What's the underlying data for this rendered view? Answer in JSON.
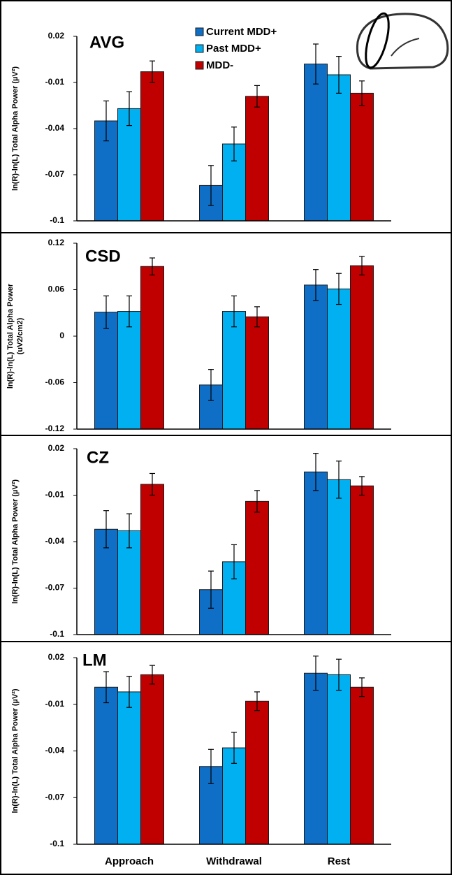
{
  "chart_data": [
    {
      "type": "bar",
      "title": "AVG",
      "ylabel": [
        "ln(R)-ln(L) Total Alpha Power (µV²)"
      ],
      "ylim": [
        -0.1,
        0.02
      ],
      "yticks": [
        0.02,
        -0.01,
        -0.04,
        -0.07,
        -0.1
      ],
      "legend": "top-center",
      "series": [
        {
          "name": "Current MDD+",
          "color": "#0f6fc6",
          "values": [
            -0.035,
            -0.077,
            0.002
          ],
          "errors": [
            0.013,
            0.013,
            0.013
          ]
        },
        {
          "name": "Past MDD+",
          "color": "#00b0f0",
          "values": [
            -0.027,
            -0.05,
            -0.005
          ],
          "errors": [
            0.011,
            0.011,
            0.012
          ]
        },
        {
          "name": "MDD-",
          "color": "#c00000",
          "values": [
            -0.003,
            -0.019,
            -0.017
          ],
          "errors": [
            0.007,
            0.007,
            0.008
          ]
        }
      ]
    },
    {
      "type": "bar",
      "title": "CSD",
      "ylabel": [
        "ln(R)-ln(L) Total Alpha Power",
        "(uV2/cm2)"
      ],
      "ylim": [
        -0.12,
        0.12
      ],
      "yticks": [
        0.12,
        0.06,
        0,
        -0.06,
        -0.12
      ],
      "series": [
        {
          "color": "#0f6fc6",
          "values": [
            0.031,
            -0.063,
            0.066
          ],
          "errors": [
            0.021,
            0.02,
            0.02
          ]
        },
        {
          "color": "#00b0f0",
          "values": [
            0.032,
            0.032,
            0.061
          ],
          "errors": [
            0.02,
            0.02,
            0.02
          ]
        },
        {
          "color": "#c00000",
          "values": [
            0.09,
            0.025,
            0.091
          ],
          "errors": [
            0.011,
            0.013,
            0.012
          ]
        }
      ]
    },
    {
      "type": "bar",
      "title": "CZ",
      "ylabel": [
        "ln(R)-ln(L) Total Alpha Power (µV²)"
      ],
      "ylim": [
        -0.1,
        0.02
      ],
      "yticks": [
        0.02,
        -0.01,
        -0.04,
        -0.07,
        -0.1
      ],
      "series": [
        {
          "color": "#0f6fc6",
          "values": [
            -0.032,
            -0.071,
            0.005
          ],
          "errors": [
            0.012,
            0.012,
            0.012
          ]
        },
        {
          "color": "#00b0f0",
          "values": [
            -0.033,
            -0.053,
            0
          ],
          "errors": [
            0.011,
            0.011,
            0.012
          ]
        },
        {
          "color": "#c00000",
          "values": [
            -0.003,
            -0.014,
            -0.004
          ],
          "errors": [
            0.007,
            0.007,
            0.006
          ]
        }
      ]
    },
    {
      "type": "bar",
      "title": "LM",
      "ylabel": [
        "ln(R)-ln(L) Total Alpha Power (µV²)"
      ],
      "categories": [
        "Approach",
        "Withdrawal",
        "Rest"
      ],
      "ylim": [
        -0.1,
        0.02
      ],
      "yticks": [
        0.02,
        -0.01,
        -0.04,
        -0.07,
        -0.1
      ],
      "series": [
        {
          "color": "#0f6fc6",
          "values": [
            0.001,
            -0.05,
            0.01
          ],
          "errors": [
            0.01,
            0.011,
            0.011
          ]
        },
        {
          "color": "#00b0f0",
          "values": [
            -0.002,
            -0.038,
            0.009
          ],
          "errors": [
            0.01,
            0.01,
            0.01
          ]
        },
        {
          "color": "#c00000",
          "values": [
            0.009,
            -0.008,
            0.001
          ],
          "errors": [
            0.006,
            0.006,
            0.006
          ]
        }
      ]
    }
  ]
}
